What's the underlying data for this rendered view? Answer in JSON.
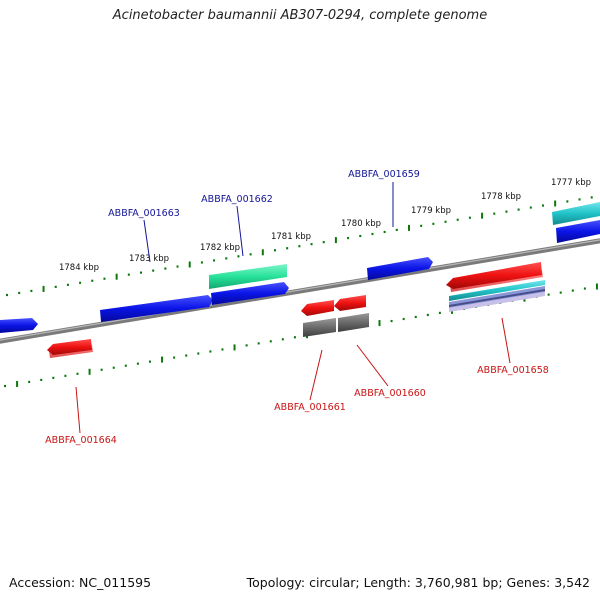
{
  "title": "Acinetobacter baumannii AB307-0294, complete genome",
  "footer": {
    "accession": "Accession: NC_011595",
    "topology": "Topology: circular; Length: 3,760,981 bp; Genes: 3,542"
  },
  "colors": {
    "forward": "#0a14e6",
    "reverse": "#ee1111",
    "rna": "#28e29a",
    "pseudo": "#6a6a6a",
    "teal": "#21c3c8",
    "label_forward": "#141496",
    "label_reverse": "#c81414",
    "tick": "#0c780c",
    "backbone": "#7a7a7a"
  },
  "ticks": {
    "upper": [
      {
        "label": "1777 kbp"
      },
      {
        "label": "1778 kbp"
      },
      {
        "label": "1779 kbp"
      },
      {
        "label": "1780 kbp"
      },
      {
        "label": "1781 kbp"
      },
      {
        "label": "1782 kbp"
      },
      {
        "label": "1783 kbp"
      },
      {
        "label": "1784 kbp"
      }
    ]
  },
  "gene_labels": [
    {
      "text": "ABBFA_001659",
      "strand": "forward"
    },
    {
      "text": "ABBFA_001662",
      "strand": "forward"
    },
    {
      "text": "ABBFA_001663",
      "strand": "forward"
    },
    {
      "text": "ABBFA_001658",
      "strand": "reverse"
    },
    {
      "text": "ABBFA_001660",
      "strand": "reverse"
    },
    {
      "text": "ABBFA_001661",
      "strand": "reverse"
    },
    {
      "text": "ABBFA_001664",
      "strand": "reverse"
    }
  ]
}
